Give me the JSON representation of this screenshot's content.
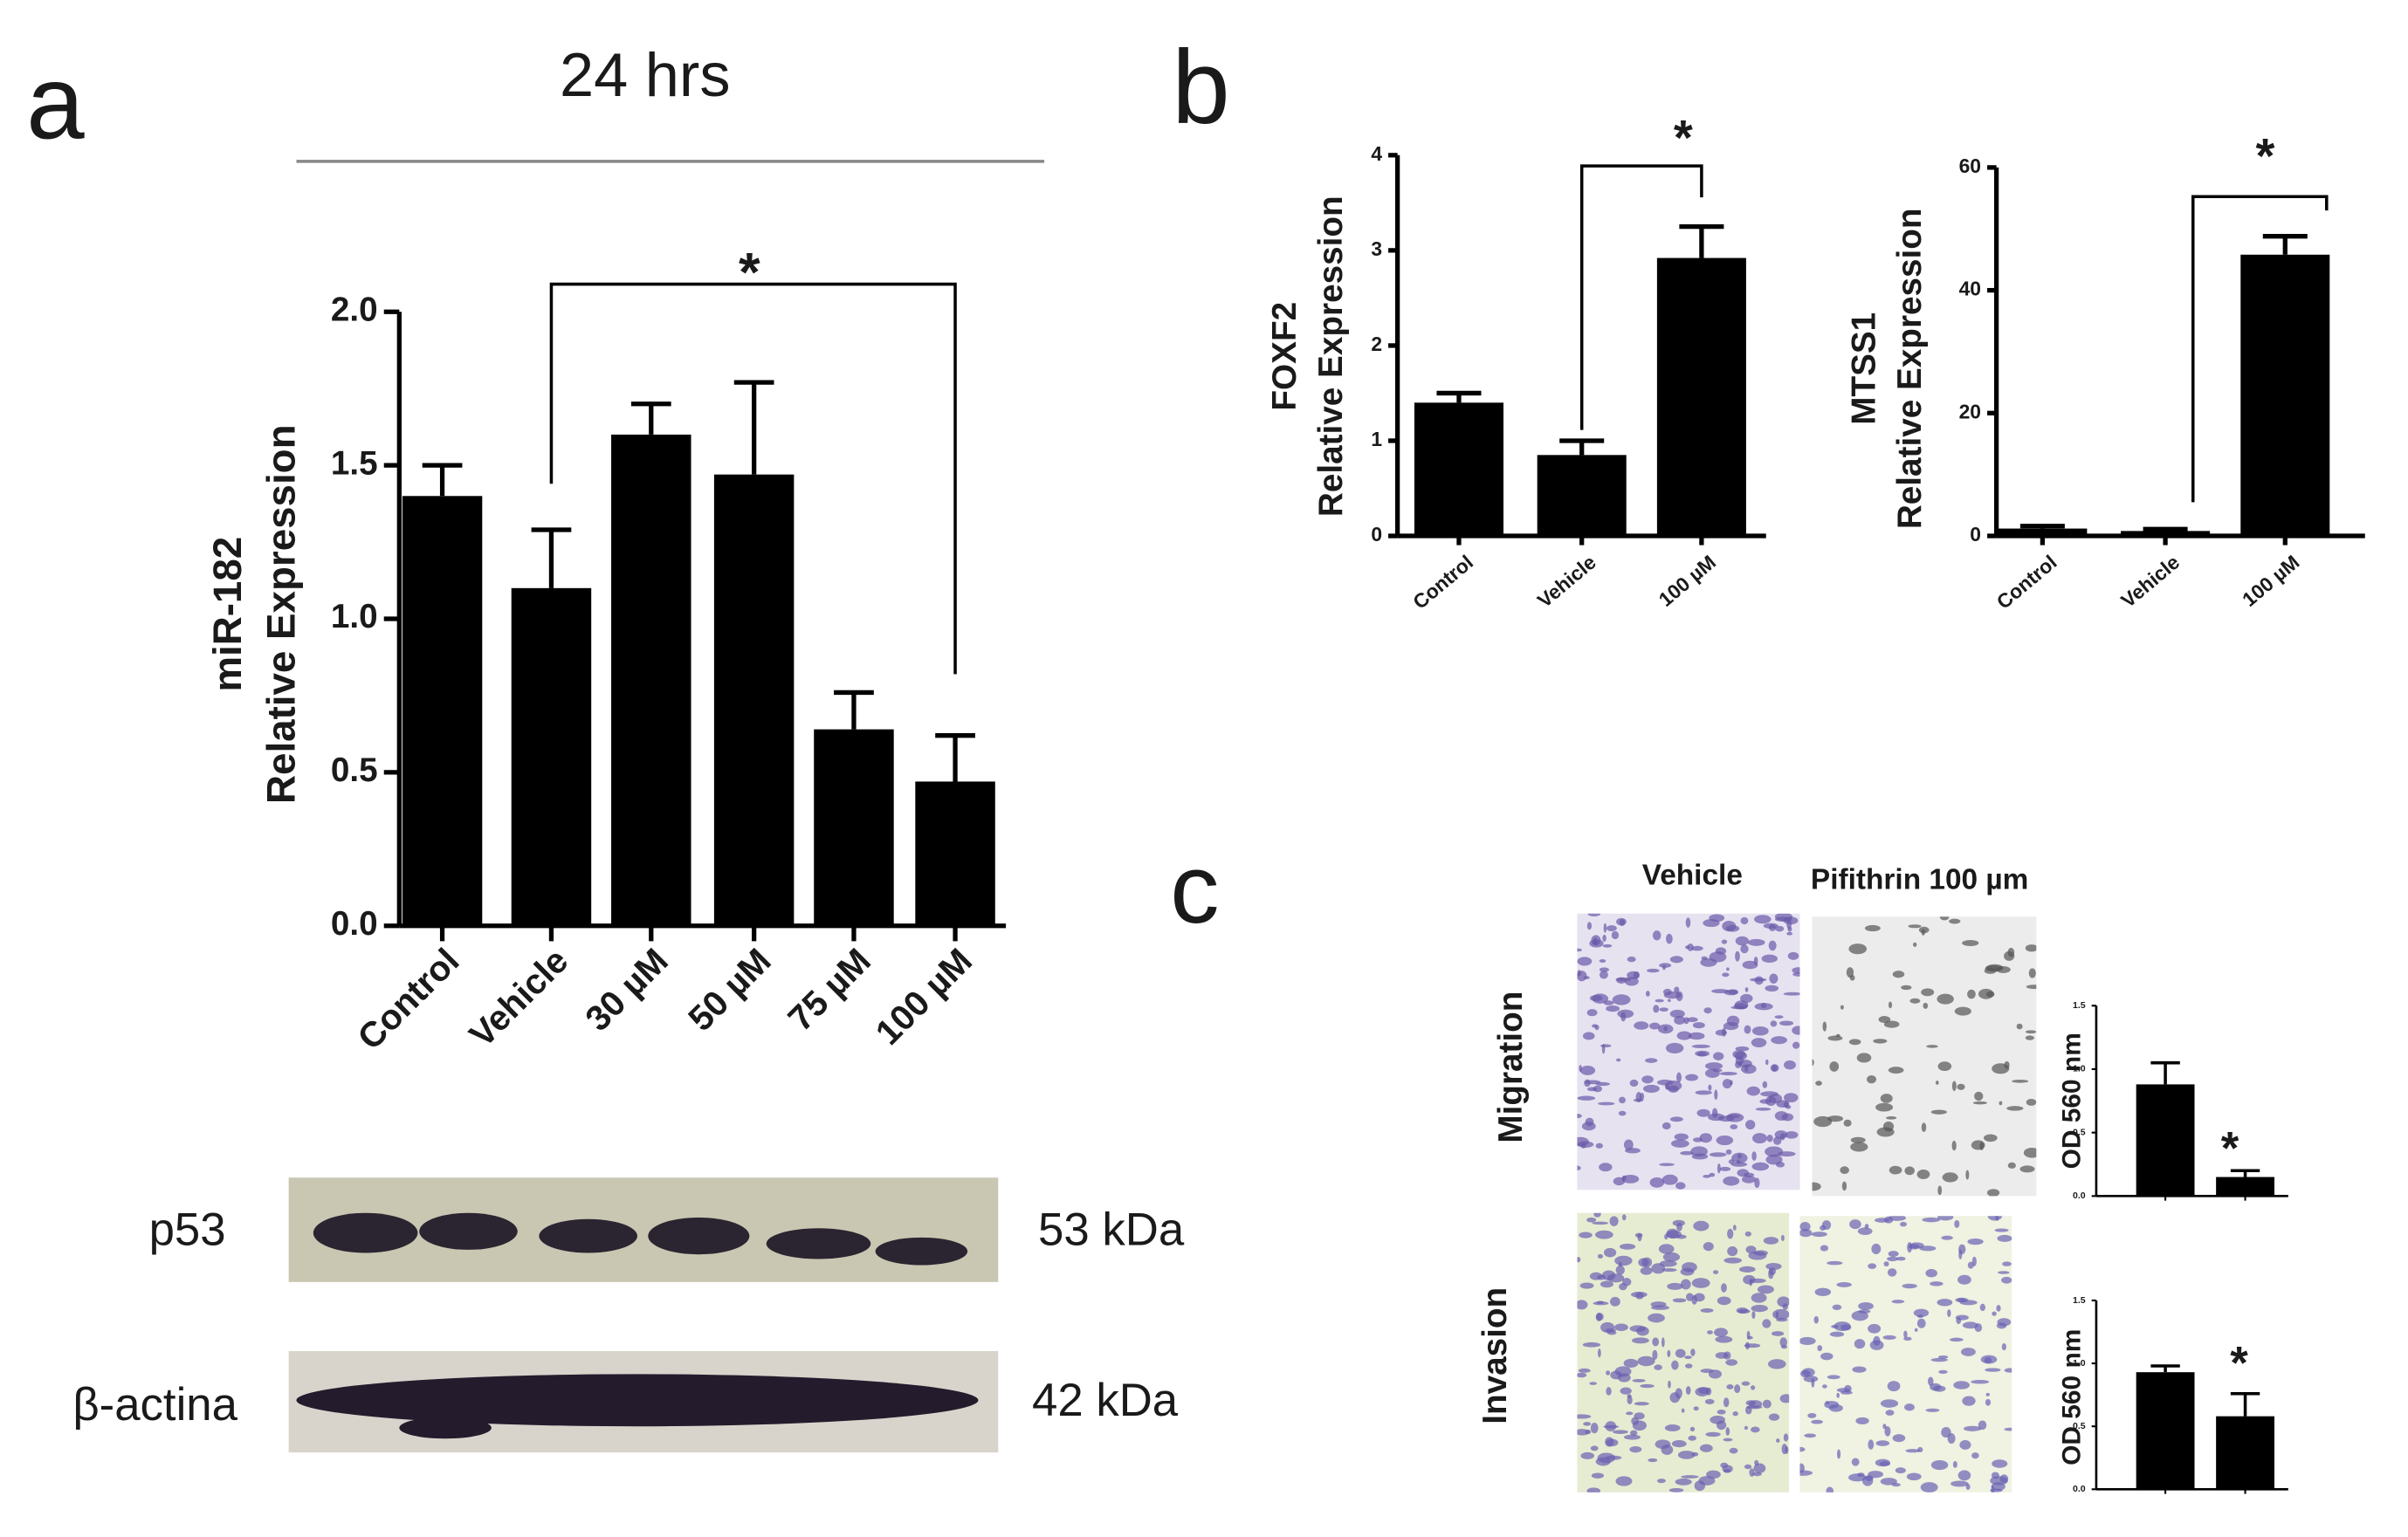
{
  "figure": {
    "panel_labels": [
      "a",
      "b",
      "c"
    ],
    "title": "24 hrs",
    "blots": [
      {
        "label": "p53",
        "size": "53 kDa"
      },
      {
        "label": "β-actina",
        "size": "42  kDa"
      }
    ],
    "image_columns": [
      "Vehicle",
      "Pifithrin 100 µm"
    ],
    "image_rows": [
      "Migration",
      "Invasion"
    ]
  },
  "chart_data": [
    {
      "type": "bar",
      "ylabel": [
        "miR-182",
        "Relative Expression"
      ],
      "categories": [
        "Control",
        "Vehicle",
        "30 µM",
        "50 µM",
        "75 µM",
        "100 µM"
      ],
      "values": [
        1.4,
        1.1,
        1.6,
        1.47,
        0.64,
        0.47
      ],
      "errors": [
        0.1,
        0.19,
        0.1,
        0.3,
        0.12,
        0.15
      ],
      "color": "#000000",
      "ylim": [
        0,
        2
      ],
      "yticks": [
        {
          "value": 0,
          "label": "0.0"
        },
        0.5,
        {
          "value": 1,
          "label": "1.0"
        },
        1.5,
        {
          "value": 2,
          "label": "2.0"
        }
      ],
      "annotation": "*"
    },
    {
      "type": "bar",
      "ylabel": [
        "FOXF2",
        "Relative Expression"
      ],
      "categories": [
        "Control",
        "Vehicle",
        "100 µM"
      ],
      "values": [
        1.4,
        0.85,
        2.92
      ],
      "errors": [
        0.1,
        0.15,
        0.33
      ],
      "color": "#000000",
      "ylim": [
        0,
        4
      ],
      "yticks": [
        0,
        1,
        2,
        3,
        4
      ],
      "annotation": "*"
    },
    {
      "type": "bar",
      "ylabel": [
        "MTSS1",
        "Relative Expression"
      ],
      "categories": [
        "Control",
        "Vehicle",
        "100 µM"
      ],
      "values": [
        1.2,
        0.8,
        45.8
      ],
      "errors": [
        0.4,
        0.3,
        3
      ],
      "color": "#000000",
      "ylim": [
        0,
        60
      ],
      "yticks": [
        0,
        20,
        40,
        60
      ],
      "annotation": "*"
    },
    {
      "type": "bar",
      "ylabel": [
        "OD  560 nm"
      ],
      "categories": [
        null,
        null
      ],
      "values": [
        0.88,
        0.15
      ],
      "errors": [
        0.17,
        0.05
      ],
      "color": "#000000",
      "ylim": [
        0,
        1.5
      ],
      "yticks": [
        {
          "value": 0,
          "label": "0.0"
        },
        0.5,
        {
          "value": 1,
          "label": "1.0"
        },
        1.5
      ],
      "annotation": "*"
    },
    {
      "type": "bar",
      "ylabel": [
        "OD  560 nm"
      ],
      "categories": [
        null,
        null
      ],
      "values": [
        0.93,
        0.58
      ],
      "errors": [
        0.05,
        0.18
      ],
      "color": "#000000",
      "ylim": [
        0,
        1.5
      ],
      "yticks": [
        {
          "value": 0,
          "label": "0.0"
        },
        0.5,
        {
          "value": 1,
          "label": "1.0"
        },
        1.5
      ],
      "annotation": "*"
    }
  ]
}
